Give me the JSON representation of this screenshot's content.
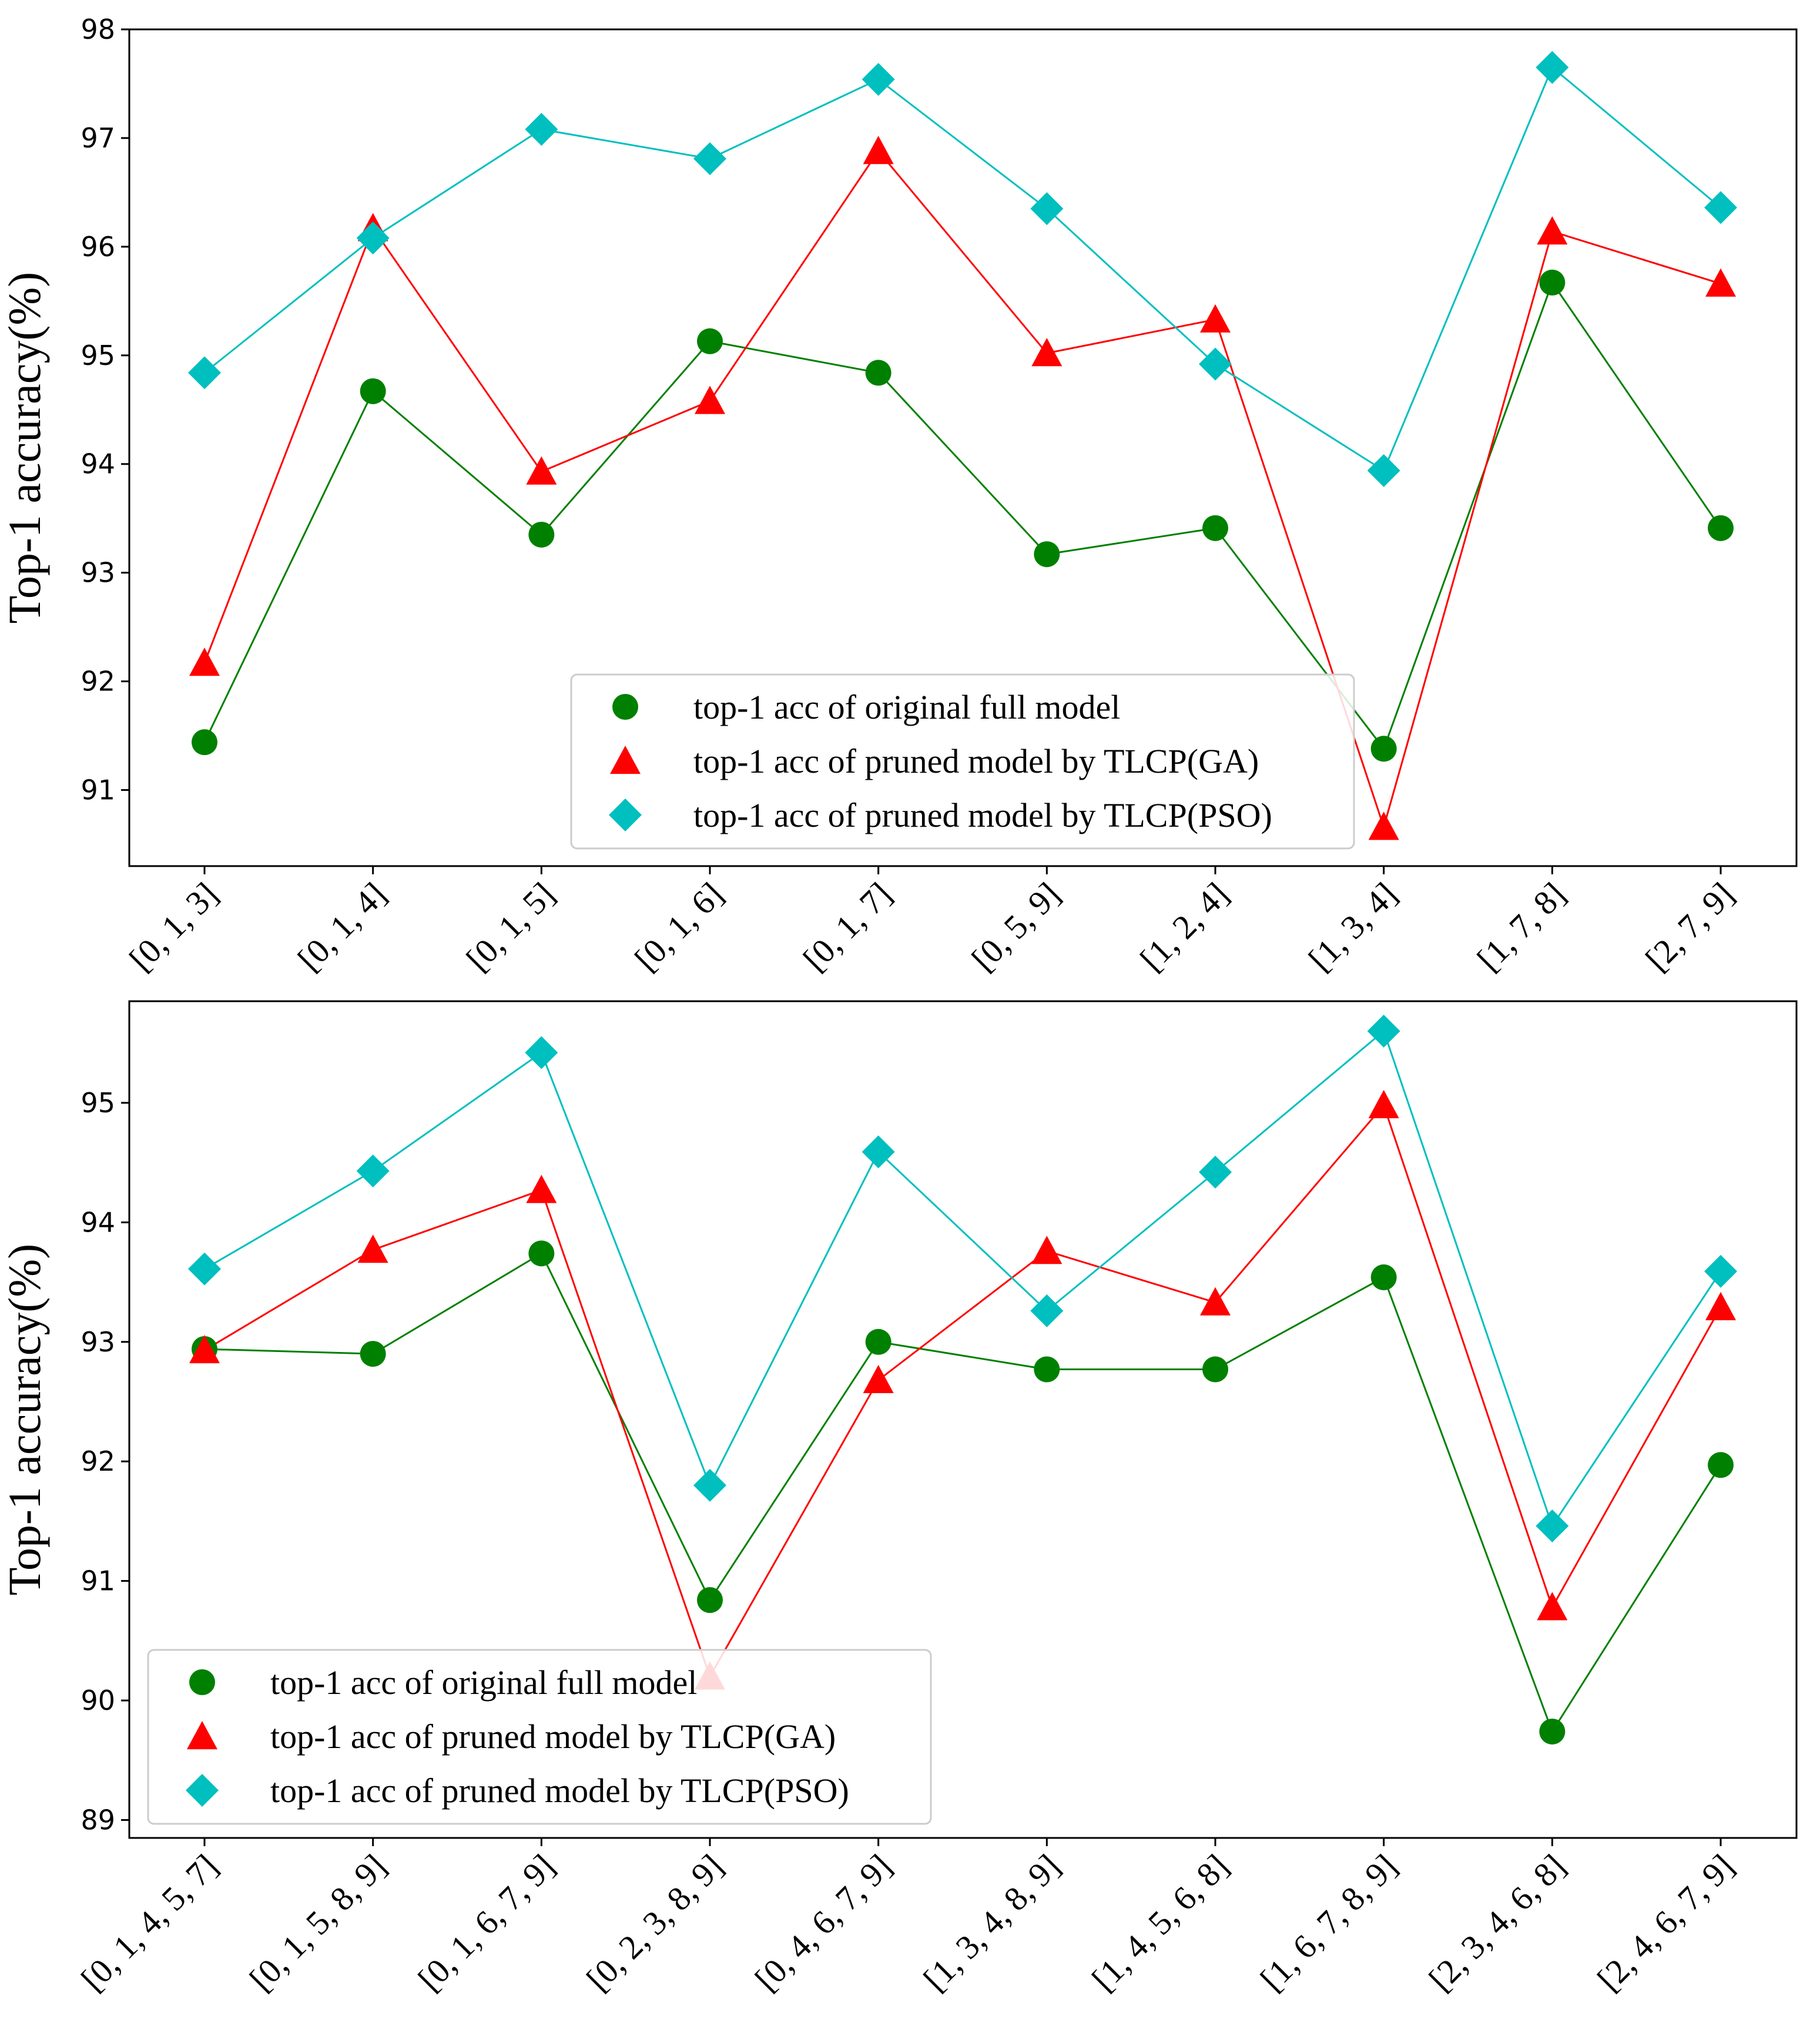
{
  "chart_data": [
    {
      "type": "line",
      "title": "",
      "xlabel": "",
      "ylabel": "Top-1 accuracy(%)",
      "ylim": [
        90.3,
        98.0
      ],
      "yticks": [
        91,
        92,
        93,
        94,
        95,
        96,
        97,
        98
      ],
      "categories": [
        "[0, 1, 3]",
        "[0, 1, 4]",
        "[0, 1, 5]",
        "[0, 1, 6]",
        "[0, 1, 7]",
        "[0, 5, 9]",
        "[1, 2, 4]",
        "[1, 3, 4]",
        "[1, 7, 8]",
        "[2, 7, 9]"
      ],
      "legend_position": "lower-center",
      "series": [
        {
          "name": "top-1 acc of original full model",
          "color": "#008000",
          "marker": "circle",
          "values": [
            91.44,
            94.67,
            93.35,
            95.13,
            94.84,
            93.17,
            93.41,
            91.38,
            95.67,
            93.41
          ]
        },
        {
          "name": "top-1 acc of pruned model by TLCP(GA)",
          "color": "#ff0000",
          "marker": "triangle",
          "values": [
            92.17,
            96.17,
            93.93,
            94.58,
            96.88,
            95.02,
            95.33,
            90.66,
            96.14,
            95.66
          ]
        },
        {
          "name": "top-1 acc of pruned model by TLCP(PSO)",
          "color": "#00bfbf",
          "marker": "diamond",
          "values": [
            94.84,
            96.08,
            97.08,
            96.81,
            97.54,
            96.35,
            94.92,
            93.94,
            97.65,
            96.36
          ]
        }
      ]
    },
    {
      "type": "line",
      "title": "",
      "xlabel": "",
      "ylabel": "Top-1 accuracy(%)",
      "ylim": [
        88.85,
        95.85
      ],
      "yticks": [
        89,
        90,
        91,
        92,
        93,
        94,
        95
      ],
      "categories": [
        "[0, 1, 4, 5, 7]",
        "[0, 1, 5, 8, 9]",
        "[0, 1, 6, 7, 9]",
        "[0, 2, 3, 8, 9]",
        "[0, 4, 6, 7, 9]",
        "[1, 3, 4, 8, 9]",
        "[1, 4, 5, 6, 8]",
        "[1, 6, 7, 8, 9]",
        "[2, 3, 4, 6, 8]",
        "[2, 4, 6, 7, 9]"
      ],
      "legend_position": "lower-left",
      "series": [
        {
          "name": "top-1 acc of original full model",
          "color": "#008000",
          "marker": "circle",
          "values": [
            92.94,
            92.9,
            93.74,
            90.84,
            93.0,
            92.77,
            92.77,
            93.54,
            89.74,
            91.97
          ]
        },
        {
          "name": "top-1 acc of pruned model by TLCP(GA)",
          "color": "#ff0000",
          "marker": "triangle",
          "values": [
            92.93,
            93.77,
            94.27,
            90.2,
            92.68,
            93.76,
            93.33,
            94.98,
            90.78,
            93.29
          ]
        },
        {
          "name": "top-1 acc of pruned model by TLCP(PSO)",
          "color": "#00bfbf",
          "marker": "diamond",
          "values": [
            93.61,
            94.43,
            95.42,
            91.8,
            94.59,
            93.26,
            94.42,
            95.6,
            91.46,
            93.59
          ]
        }
      ]
    }
  ]
}
